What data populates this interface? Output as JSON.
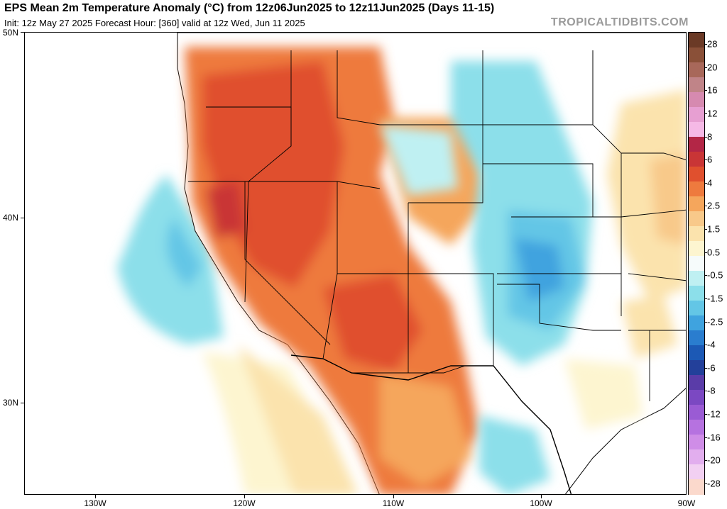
{
  "header": {
    "title": "EPS Mean 2m Temperature Anomaly (°C) from 12z06Jun2025 to 12z11Jun2025 (Days 11-15)",
    "subtitle": "Init: 12z May 27 2025   Forecast Hour: [360]   valid at 12z Wed, Jun 11 2025",
    "brand": "TROPICALTIDBITS.COM"
  },
  "axes": {
    "lat_labels": [
      "50N",
      "40N",
      "30N"
    ],
    "lon_labels": [
      "130W",
      "120W",
      "110W",
      "100W",
      "90W"
    ]
  },
  "colorbar": {
    "labels": [
      "28",
      "20",
      "16",
      "12",
      "8",
      "6",
      "4",
      "2.5",
      "1.5",
      "0.5",
      "-0.5",
      "-1.5",
      "-2.5",
      "-4",
      "-6",
      "-8",
      "-12",
      "-16",
      "-20",
      "-28"
    ],
    "colors": [
      "#6b3a26",
      "#8a5038",
      "#a8685a",
      "#c08488",
      "#d68ab0",
      "#e79fd2",
      "#f5b9e6",
      "#b32646",
      "#c93536",
      "#e0502e",
      "#ee7a3e",
      "#f5a65c",
      "#f8c98a",
      "#fbe3ad",
      "#fdf5d0",
      "#f6fbfb",
      "#bff0f2",
      "#8cdfea",
      "#63c6e6",
      "#3fa3df",
      "#2a7dcf",
      "#1c59b5",
      "#23409a",
      "#5a3ca8",
      "#7b48c2",
      "#9a5bd4",
      "#b672e0",
      "#cf8de7",
      "#e2aeee",
      "#f2d0f2",
      "#fbd9cc"
    ]
  },
  "legend_colors": {
    "warm_strong": "#c93536",
    "warm": "#ee7a3e",
    "warm_light": "#f8c98a",
    "neutral": "#ffffff",
    "cool_light": "#8cdfea",
    "cool": "#3fa3df"
  }
}
